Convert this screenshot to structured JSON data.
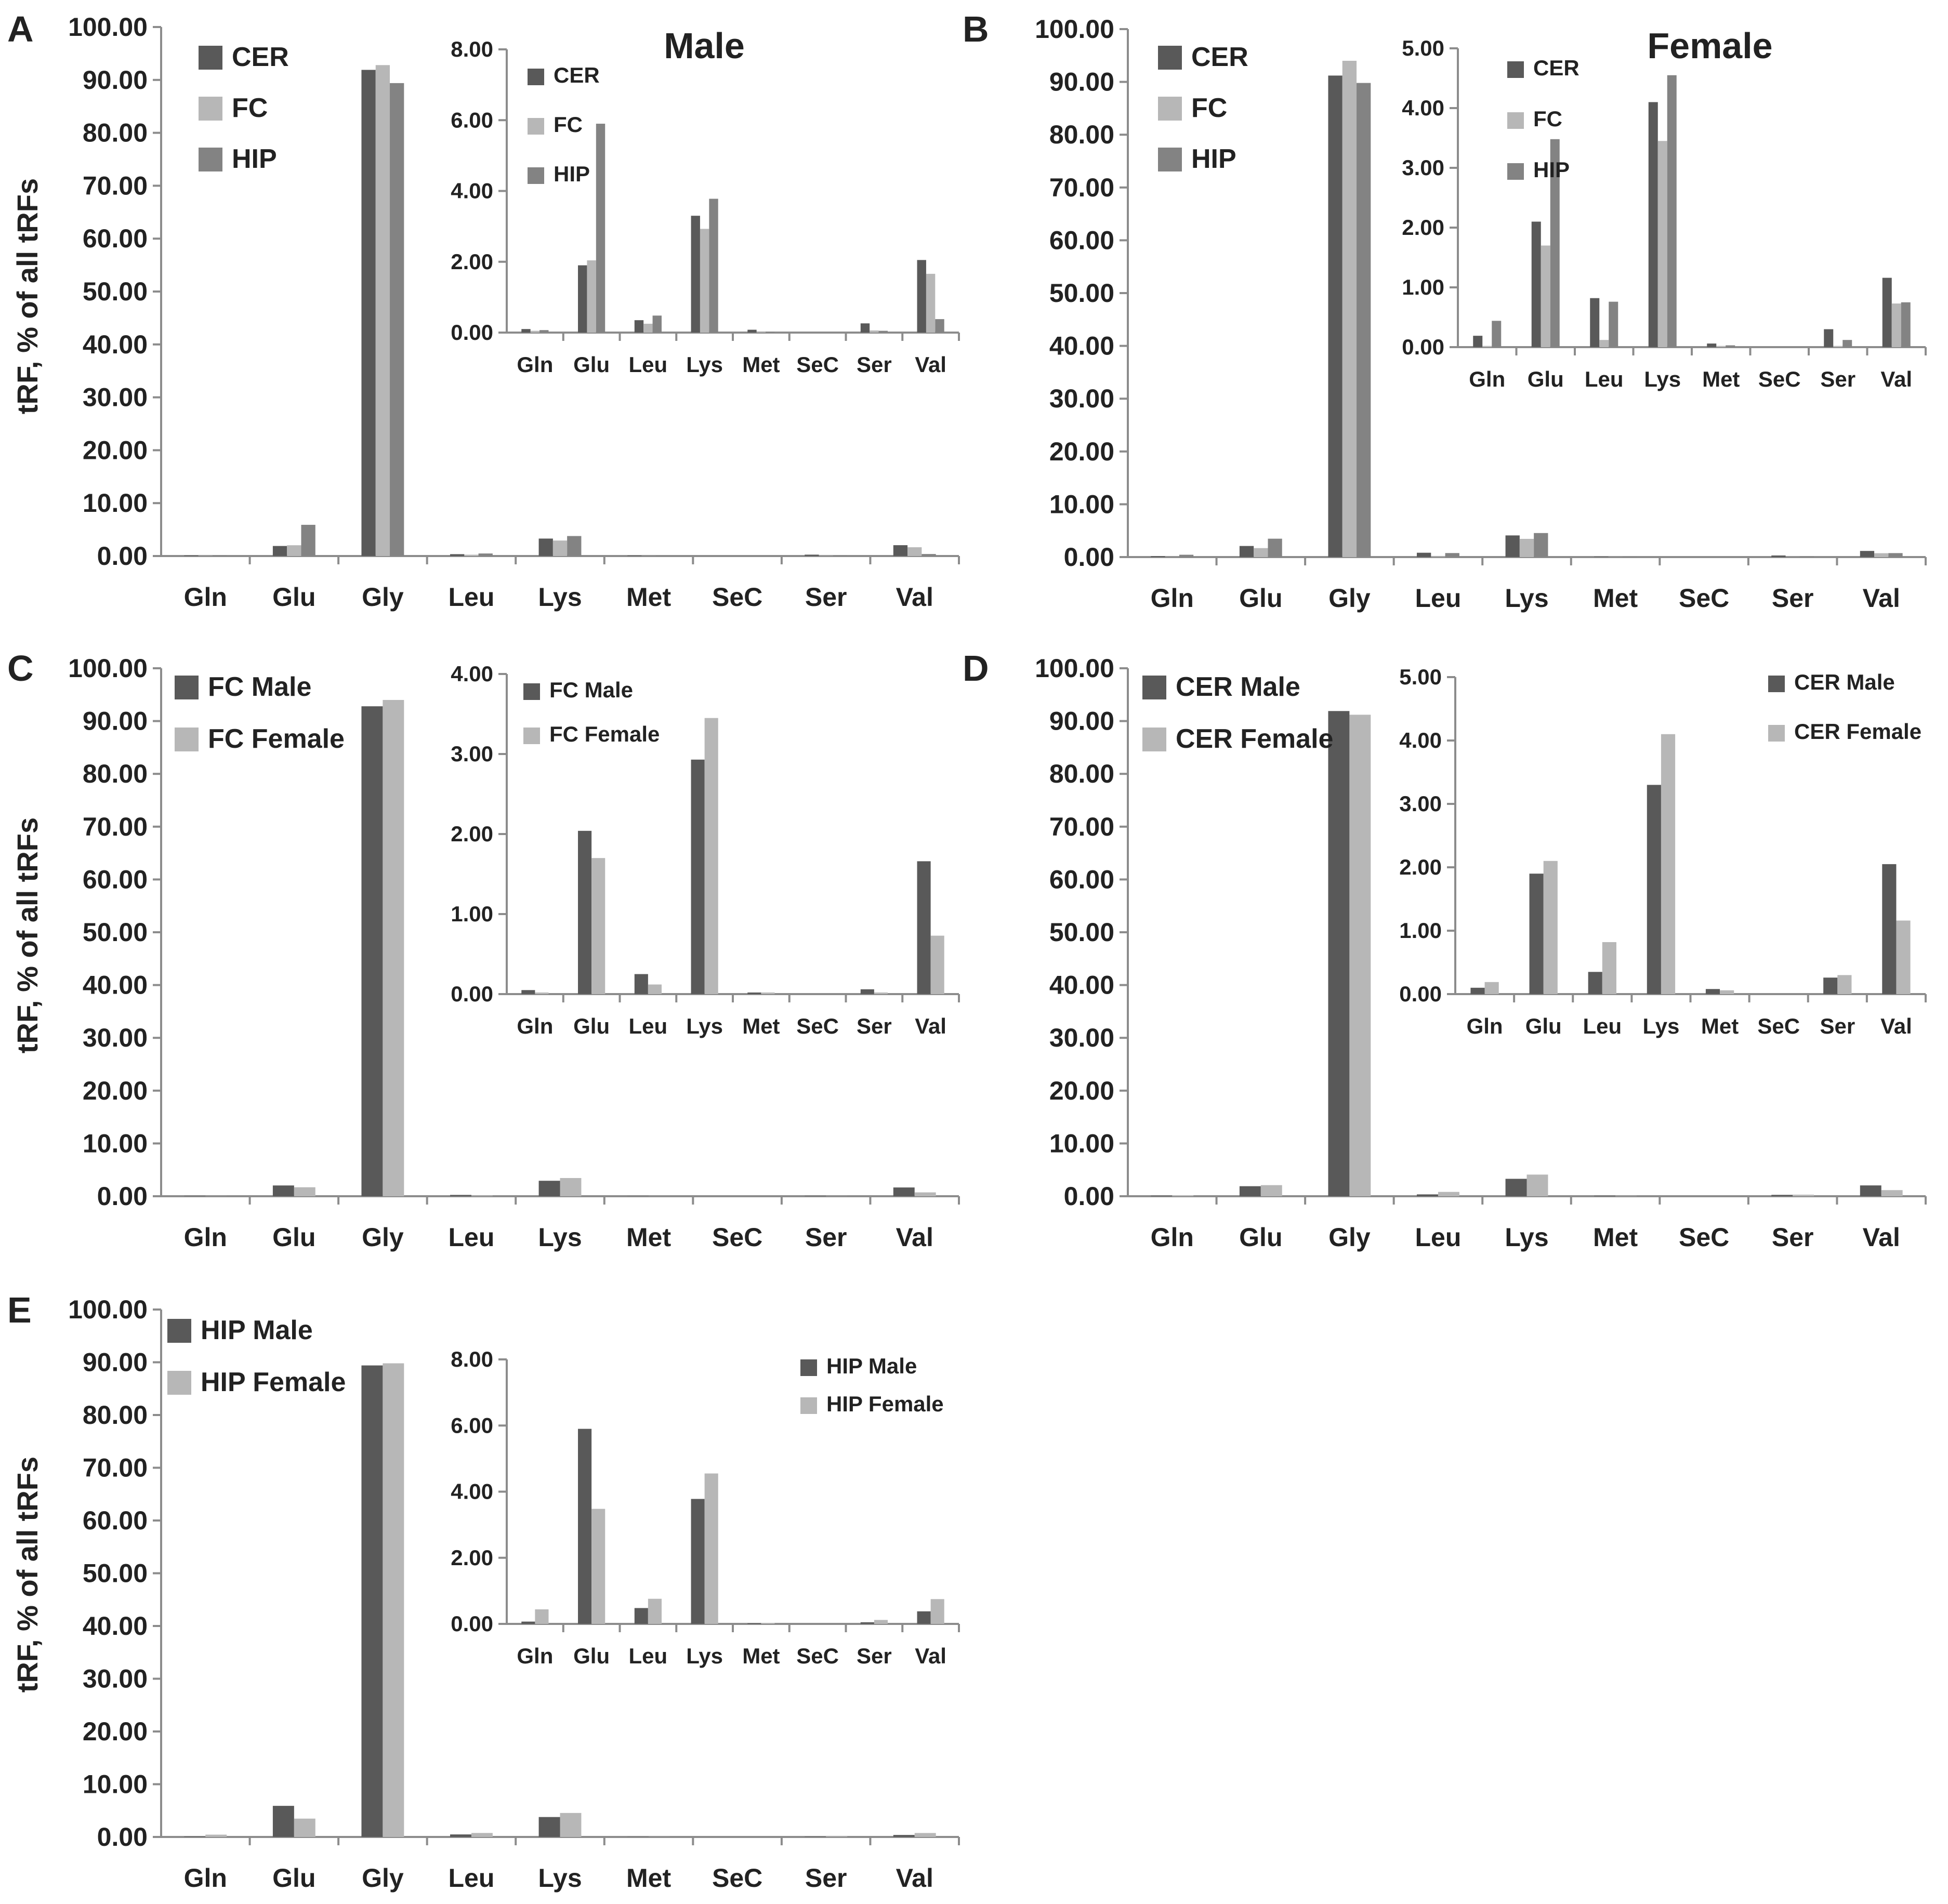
{
  "figure": {
    "ylabel": "tRF, % of all tRFs",
    "colors": {
      "dark": "#595959",
      "light": "#b7b7b7",
      "mid": "#838383",
      "axis": "#8c8c8c"
    }
  },
  "chart_data": [
    {
      "id": "A-main",
      "panel_label": "A",
      "type": "bar",
      "title": "",
      "xlabel": "",
      "ylabel": "tRF, % of all tRFs",
      "ylim": [
        0,
        100
      ],
      "ytick_step": 10,
      "tick_decimals": 2,
      "legend_position": "top-left",
      "categories": [
        "Gln",
        "Glu",
        "Gly",
        "Leu",
        "Lys",
        "Met",
        "SeC",
        "Ser",
        "Val"
      ],
      "series": [
        {
          "name": "CER",
          "color": "#595959",
          "values": [
            0.1,
            1.9,
            91.9,
            0.35,
            3.3,
            0.08,
            0.0,
            0.26,
            2.05
          ]
        },
        {
          "name": "FC",
          "color": "#b7b7b7",
          "values": [
            0.05,
            2.04,
            92.8,
            0.25,
            2.93,
            0.02,
            0.0,
            0.06,
            1.66
          ]
        },
        {
          "name": "HIP",
          "color": "#838383",
          "values": [
            0.07,
            5.9,
            89.4,
            0.48,
            3.78,
            0.02,
            0.0,
            0.05,
            0.38
          ]
        }
      ]
    },
    {
      "id": "A-inset",
      "panel_label": "",
      "type": "bar",
      "title": "Male",
      "xlabel": "",
      "ylabel": "",
      "ylim": [
        0,
        8
      ],
      "ytick_step": 2,
      "tick_decimals": 2,
      "legend_position": "top-left",
      "categories": [
        "Gln",
        "Glu",
        "Leu",
        "Lys",
        "Met",
        "SeC",
        "Ser",
        "Val"
      ],
      "series": [
        {
          "name": "CER",
          "color": "#595959",
          "values": [
            0.1,
            1.9,
            0.35,
            3.3,
            0.08,
            0.0,
            0.26,
            2.05
          ]
        },
        {
          "name": "FC",
          "color": "#b7b7b7",
          "values": [
            0.05,
            2.04,
            0.25,
            2.93,
            0.02,
            0.0,
            0.06,
            1.66
          ]
        },
        {
          "name": "HIP",
          "color": "#838383",
          "values": [
            0.07,
            5.9,
            0.48,
            3.78,
            0.02,
            0.0,
            0.05,
            0.38
          ]
        }
      ]
    },
    {
      "id": "B-main",
      "panel_label": "B",
      "type": "bar",
      "title": "",
      "xlabel": "",
      "ylabel": "",
      "ylim": [
        0,
        100
      ],
      "ytick_step": 10,
      "tick_decimals": 2,
      "legend_position": "top-left",
      "categories": [
        "Gln",
        "Glu",
        "Gly",
        "Leu",
        "Lys",
        "Met",
        "SeC",
        "Ser",
        "Val"
      ],
      "series": [
        {
          "name": "CER",
          "color": "#595959",
          "values": [
            0.19,
            2.1,
            91.2,
            0.82,
            4.1,
            0.06,
            0.0,
            0.3,
            1.16
          ]
        },
        {
          "name": "FC",
          "color": "#b7b7b7",
          "values": [
            0.02,
            1.7,
            94.0,
            0.12,
            3.45,
            0.02,
            0.0,
            0.02,
            0.73
          ]
        },
        {
          "name": "HIP",
          "color": "#838383",
          "values": [
            0.44,
            3.48,
            89.8,
            0.76,
            4.55,
            0.03,
            0.0,
            0.12,
            0.75
          ]
        }
      ]
    },
    {
      "id": "B-inset",
      "panel_label": "",
      "type": "bar",
      "title": "Female",
      "xlabel": "",
      "ylabel": "",
      "ylim": [
        0,
        5
      ],
      "ytick_step": 1,
      "tick_decimals": 2,
      "legend_position": "top-left",
      "categories": [
        "Gln",
        "Glu",
        "Leu",
        "Lys",
        "Met",
        "SeC",
        "Ser",
        "Val"
      ],
      "series": [
        {
          "name": "CER",
          "color": "#595959",
          "values": [
            0.19,
            2.1,
            0.82,
            4.1,
            0.06,
            0.0,
            0.3,
            1.16
          ]
        },
        {
          "name": "FC",
          "color": "#b7b7b7",
          "values": [
            0.02,
            1.7,
            0.12,
            3.45,
            0.02,
            0.0,
            0.02,
            0.73
          ]
        },
        {
          "name": "HIP",
          "color": "#838383",
          "values": [
            0.44,
            3.48,
            0.76,
            4.55,
            0.03,
            0.0,
            0.12,
            0.75
          ]
        }
      ]
    },
    {
      "id": "C-main",
      "panel_label": "C",
      "type": "bar",
      "title": "",
      "xlabel": "",
      "ylabel": "tRF, % of all tRFs",
      "ylim": [
        0,
        100
      ],
      "ytick_step": 10,
      "tick_decimals": 2,
      "legend_position": "top-left",
      "categories": [
        "Gln",
        "Glu",
        "Gly",
        "Leu",
        "Lys",
        "Met",
        "SeC",
        "Ser",
        "Val"
      ],
      "series": [
        {
          "name": "FC Male",
          "color": "#595959",
          "values": [
            0.05,
            2.04,
            92.8,
            0.25,
            2.93,
            0.02,
            0.0,
            0.06,
            1.66
          ]
        },
        {
          "name": "FC Female",
          "color": "#b7b7b7",
          "values": [
            0.02,
            1.7,
            94.0,
            0.12,
            3.45,
            0.02,
            0.0,
            0.02,
            0.73
          ]
        }
      ]
    },
    {
      "id": "C-inset",
      "panel_label": "",
      "type": "bar",
      "title": "",
      "xlabel": "",
      "ylabel": "",
      "ylim": [
        0,
        4
      ],
      "ytick_step": 1,
      "tick_decimals": 2,
      "legend_position": "top-left",
      "categories": [
        "Gln",
        "Glu",
        "Leu",
        "Lys",
        "Met",
        "SeC",
        "Ser",
        "Val"
      ],
      "series": [
        {
          "name": "FC Male",
          "color": "#595959",
          "values": [
            0.05,
            2.04,
            0.25,
            2.93,
            0.02,
            0.0,
            0.06,
            1.66
          ]
        },
        {
          "name": "FC Female",
          "color": "#b7b7b7",
          "values": [
            0.02,
            1.7,
            0.12,
            3.45,
            0.02,
            0.0,
            0.02,
            0.73
          ]
        }
      ]
    },
    {
      "id": "D-main",
      "panel_label": "D",
      "type": "bar",
      "title": "",
      "xlabel": "",
      "ylabel": "",
      "ylim": [
        0,
        100
      ],
      "ytick_step": 10,
      "tick_decimals": 2,
      "legend_position": "top-left",
      "categories": [
        "Gln",
        "Glu",
        "Gly",
        "Leu",
        "Lys",
        "Met",
        "SeC",
        "Ser",
        "Val"
      ],
      "series": [
        {
          "name": "CER Male",
          "color": "#595959",
          "values": [
            0.1,
            1.9,
            91.9,
            0.35,
            3.3,
            0.08,
            0.0,
            0.26,
            2.05
          ]
        },
        {
          "name": "CER Female",
          "color": "#b7b7b7",
          "values": [
            0.19,
            2.1,
            91.2,
            0.82,
            4.1,
            0.06,
            0.0,
            0.3,
            1.16
          ]
        }
      ]
    },
    {
      "id": "D-inset",
      "panel_label": "",
      "type": "bar",
      "title": "",
      "xlabel": "",
      "ylabel": "",
      "ylim": [
        0,
        5
      ],
      "ytick_step": 1,
      "tick_decimals": 2,
      "legend_position": "top-right",
      "categories": [
        "Gln",
        "Glu",
        "Leu",
        "Lys",
        "Met",
        "SeC",
        "Ser",
        "Val"
      ],
      "series": [
        {
          "name": "CER Male",
          "color": "#595959",
          "values": [
            0.1,
            1.9,
            0.35,
            3.3,
            0.08,
            0.0,
            0.26,
            2.05
          ]
        },
        {
          "name": "CER Female",
          "color": "#b7b7b7",
          "values": [
            0.19,
            2.1,
            0.82,
            4.1,
            0.06,
            0.0,
            0.3,
            1.16
          ]
        }
      ]
    },
    {
      "id": "E-main",
      "panel_label": "E",
      "type": "bar",
      "title": "",
      "xlabel": "",
      "ylabel": "tRF, % of all tRFs",
      "ylim": [
        0,
        100
      ],
      "ytick_step": 10,
      "tick_decimals": 2,
      "legend_position": "top-left",
      "categories": [
        "Gln",
        "Glu",
        "Gly",
        "Leu",
        "Lys",
        "Met",
        "SeC",
        "Ser",
        "Val"
      ],
      "series": [
        {
          "name": "HIP Male",
          "color": "#595959",
          "values": [
            0.07,
            5.9,
            89.4,
            0.48,
            3.78,
            0.02,
            0.0,
            0.05,
            0.38
          ]
        },
        {
          "name": "HIP Female",
          "color": "#b7b7b7",
          "values": [
            0.44,
            3.48,
            89.8,
            0.76,
            4.55,
            0.03,
            0.0,
            0.12,
            0.75
          ]
        }
      ]
    },
    {
      "id": "E-inset",
      "panel_label": "",
      "type": "bar",
      "title": "",
      "xlabel": "",
      "ylabel": "",
      "ylim": [
        0,
        8
      ],
      "ytick_step": 2,
      "tick_decimals": 2,
      "legend_position": "top-right",
      "categories": [
        "Gln",
        "Glu",
        "Leu",
        "Lys",
        "Met",
        "SeC",
        "Ser",
        "Val"
      ],
      "series": [
        {
          "name": "HIP Male",
          "color": "#595959",
          "values": [
            0.07,
            5.9,
            0.48,
            3.78,
            0.02,
            0.0,
            0.05,
            0.38
          ]
        },
        {
          "name": "HIP Female",
          "color": "#b7b7b7",
          "values": [
            0.44,
            3.48,
            0.76,
            4.55,
            0.03,
            0.0,
            0.12,
            0.75
          ]
        }
      ]
    }
  ]
}
